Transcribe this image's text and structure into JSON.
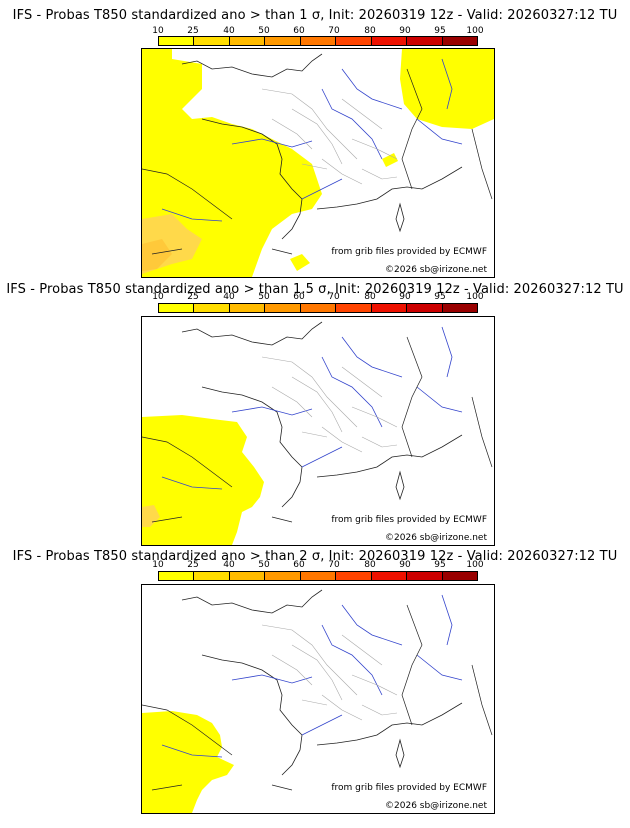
{
  "scale": {
    "ticks": [
      "10",
      "25",
      "40",
      "50",
      "60",
      "70",
      "80",
      "90",
      "95",
      "100"
    ],
    "colors": [
      "#ffff00",
      "#ffdd00",
      "#ffbb00",
      "#ff9900",
      "#ff7700",
      "#ff4400",
      "#ee1100",
      "#cc0000",
      "#990000",
      "#550000"
    ]
  },
  "panels": [
    {
      "title": "IFS - Probas T850  standardized ano > than 1 σ, Init: 20260319 12z - Valid: 20260327:12 TU",
      "credit_line1": "from grib files provided by ECMWF",
      "credit_line2": "©2026 sb@irizone.net"
    },
    {
      "title": "IFS - Probas T850  standardized ano > than 1.5 σ, Init: 20260319 12z - Valid: 20260327:12 TU",
      "credit_line1": "from grib files provided by ECMWF",
      "credit_line2": "©2026 sb@irizone.net"
    },
    {
      "title": "IFS - Probas T850  standardized ano > than 2 σ, Init: 20260319 12z - Valid: 20260327:12 TU",
      "credit_line1": "from grib files provided by ECMWF",
      "credit_line2": "©2026 sb@irizone.net"
    }
  ]
}
